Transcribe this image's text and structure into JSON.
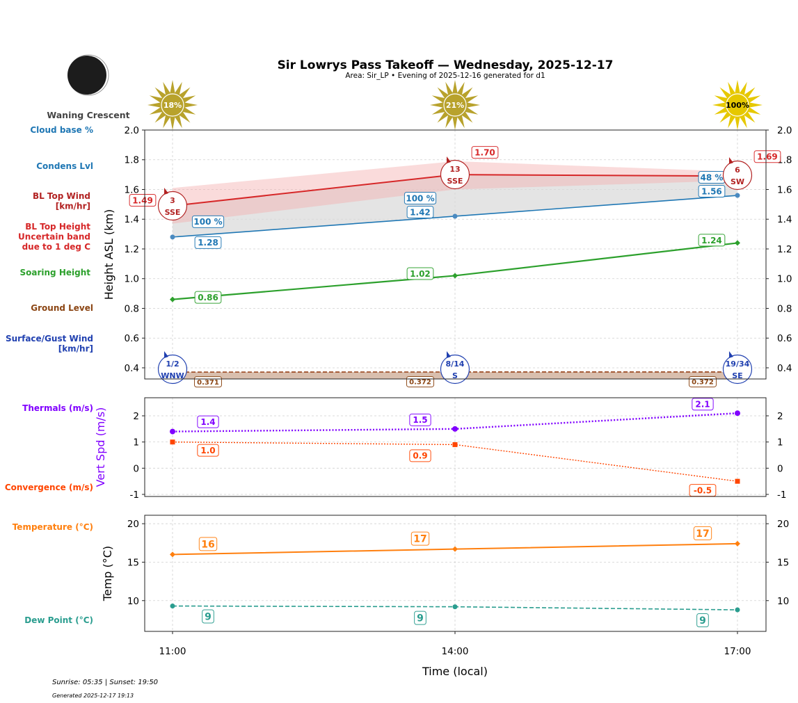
{
  "chart_data": {
    "title": "Sir Lowrys Pass Takeoff — Wednesday, 2025-12-17",
    "subtitle": "Area: Sir_LP • Evening of 2025-12-16 generated for d1",
    "moon_phase": "Waning Crescent",
    "sun_percent": [
      "18%",
      "21%",
      "100%"
    ],
    "xlabel": "Time (local)",
    "x": [
      "11:00",
      "14:00",
      "17:00"
    ],
    "footer": {
      "sun": "Sunrise: 05:35 | Sunset: 19:50",
      "generated": "Generated 2025-12-17 19:13"
    },
    "panels": [
      {
        "type": "line",
        "ylabel": "Height ASL (km)",
        "ylim": [
          0.325,
          2.0
        ],
        "yticks": [
          "0.4",
          "0.6",
          "0.8",
          "1.0",
          "1.2",
          "1.4",
          "1.6",
          "1.8",
          "2.0"
        ],
        "grid": true,
        "legend_labels": {
          "cloud_base": "Cloud base %",
          "condens": "Condens Lvl",
          "bl_wind": "BL Top Wind\n[km/hr]",
          "bl_top": "BL Top Height\nUncertain band\ndue to 1 deg C",
          "soaring": "Soaring Height",
          "ground": "Ground Level",
          "surface_wind": "Surface/Gust Wind\n[km/hr]"
        },
        "series": {
          "bl_top": {
            "values": [
              1.49,
              1.7,
              1.69
            ],
            "labels": [
              "1.49",
              "1.70",
              "1.69"
            ],
            "band_low": [
              1.37,
              1.6,
              1.66
            ],
            "band_high": [
              1.61,
              1.79,
              1.72
            ],
            "color": "#d62728"
          },
          "condens": {
            "values": [
              1.28,
              1.42,
              1.56
            ],
            "labels": [
              "1.28",
              "1.42",
              "1.56"
            ],
            "color": "#1f77b4"
          },
          "cloud_base_pct": {
            "labels": [
              "100 %",
              "100 %",
              "48 %"
            ],
            "color": "#1f77b4"
          },
          "soaring": {
            "values": [
              0.86,
              1.02,
              1.24
            ],
            "labels": [
              "0.86",
              "1.02",
              "1.24"
            ],
            "color": "#2ca02c"
          },
          "ground": {
            "values": [
              0.371,
              0.372,
              0.372
            ],
            "labels": [
              "0.371",
              "0.372",
              "0.372"
            ],
            "color": "#8b4513"
          },
          "bl_wind": {
            "speed": [
              "3",
              "13",
              "6"
            ],
            "dir": [
              "SSE",
              "SSE",
              "SW"
            ],
            "color": "#b22222"
          },
          "surface_wind": {
            "speed": [
              "1/2",
              "8/14",
              "19/34"
            ],
            "dir": [
              "WNW",
              "S",
              "SE"
            ],
            "color": "#2040b0"
          }
        }
      },
      {
        "type": "line",
        "ylabel": "Vert Spd (m/s)",
        "ylim": [
          -1.08,
          2.69
        ],
        "yticks": [
          "-1",
          "0",
          "1",
          "2"
        ],
        "grid": true,
        "legend_labels": {
          "thermals": "Thermals (m/s)",
          "convergence": "Convergence (m/s)"
        },
        "series": {
          "thermals": {
            "values": [
              1.4,
              1.5,
              2.1
            ],
            "labels": [
              "1.4",
              "1.5",
              "2.1"
            ],
            "color": "#8000ff"
          },
          "convergence": {
            "values": [
              1.0,
              0.9,
              -0.5
            ],
            "labels": [
              "1.0",
              "0.9",
              "-0.5"
            ],
            "color": "#ff4500"
          }
        }
      },
      {
        "type": "line",
        "ylabel": "Temp (°C)",
        "ylim": [
          6.0,
          21.1
        ],
        "yticks": [
          "10",
          "15",
          "20"
        ],
        "grid": true,
        "legend_labels": {
          "temperature": "Temperature (°C)",
          "dewpoint": "Dew Point (°C)"
        },
        "series": {
          "temperature": {
            "values": [
              16.0,
              16.7,
              17.4
            ],
            "labels": [
              "16",
              "17",
              "17"
            ],
            "color": "#ff7f0e"
          },
          "dewpoint": {
            "values": [
              9.3,
              9.2,
              8.8
            ],
            "labels": [
              "9",
              "9",
              "9"
            ],
            "color": "#2a9d8f"
          }
        }
      }
    ]
  }
}
